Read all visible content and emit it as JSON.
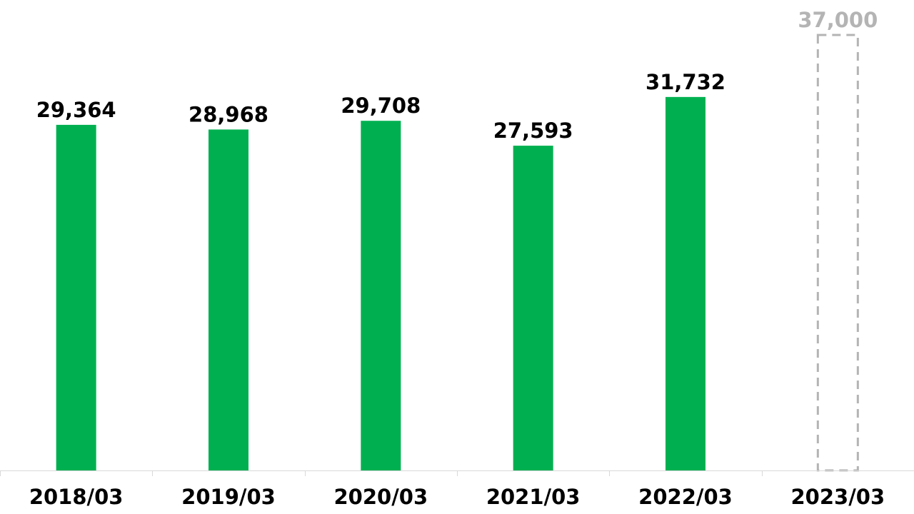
{
  "chart_data": {
    "type": "bar",
    "categories": [
      "2018/03",
      "2019/03",
      "2020/03",
      "2021/03",
      "2022/03",
      "2023/03"
    ],
    "values": [
      29364,
      28968,
      29708,
      27593,
      31732,
      37000
    ],
    "value_labels": [
      "29,364",
      "28,968",
      "29,708",
      "27,593",
      "31,732",
      "37,000"
    ],
    "forecast": [
      false,
      false,
      false,
      false,
      false,
      true
    ],
    "ylim": [
      0,
      37000
    ],
    "bar_color": "#00b050",
    "forecast_color": "#b4b4b4",
    "axis_color": "#d9d9d9",
    "grid": false,
    "legend": "none"
  }
}
